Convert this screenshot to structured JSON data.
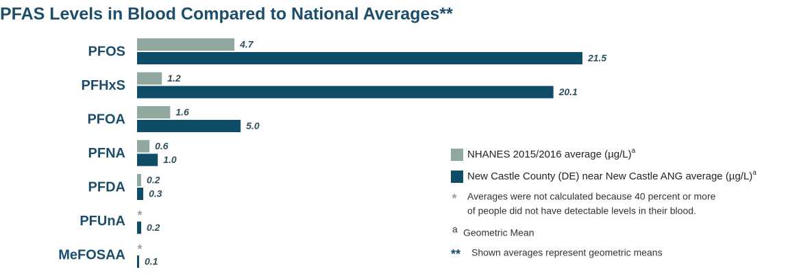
{
  "chart_data": {
    "type": "hbar",
    "title": "PFAS Levels in Blood Compared to National Averages**",
    "categories": [
      "PFOS",
      "PFHxS",
      "PFOA",
      "PFNA",
      "PFDA",
      "PFUnA",
      "MeFOSAA"
    ],
    "series": [
      {
        "name": "NHANES 2015/2016 average (µg/L)",
        "name_superscript": "a",
        "color": "#91a89e",
        "values": [
          4.7,
          1.2,
          1.6,
          0.6,
          0.2,
          null,
          null
        ],
        "value_labels": [
          "4.7",
          "1.2",
          "1.6",
          "0.6",
          "0.2",
          "*",
          "*"
        ]
      },
      {
        "name": "New Castle County (DE) near New Castle ANG average (µg/L)",
        "name_superscript": "a",
        "color": "#0f4c68",
        "values": [
          21.5,
          20.1,
          5.0,
          1.0,
          0.3,
          0.2,
          0.1
        ],
        "value_labels": [
          "21.5",
          "20.1",
          "5.0",
          "1.0",
          "0.3",
          "0.2",
          "0.1"
        ]
      }
    ],
    "footnotes": [
      {
        "marker": "*",
        "lines": [
          "Averages were not calculated because 40 percent or more",
          "of people did not have detectable levels in their blood."
        ]
      },
      {
        "marker": "a",
        "lines": [
          "Geometric Mean"
        ]
      },
      {
        "marker": "**",
        "lines": [
          "Shown averages represent geometric means"
        ]
      }
    ]
  }
}
